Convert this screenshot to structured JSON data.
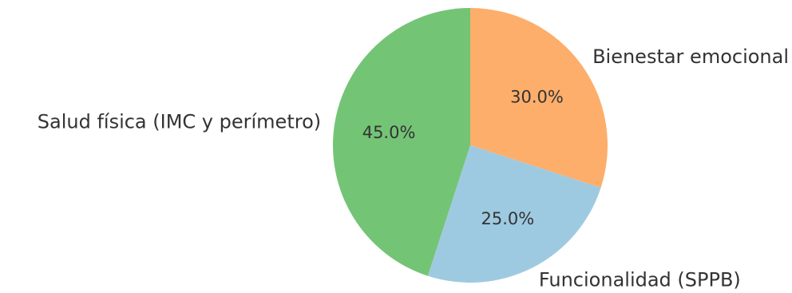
{
  "chart_data": {
    "type": "pie",
    "categories": [
      "Bienestar emocional",
      "Funcionalidad (SPPB)",
      "Salud física (IMC y perímetro)"
    ],
    "values": [
      30.0,
      25.0,
      45.0
    ],
    "percent_labels": [
      "30.0%",
      "25.0%",
      "45.0%"
    ],
    "colors": [
      "#fdae6b",
      "#9ecae1",
      "#74c476"
    ],
    "start_angle_deg": 90,
    "direction": "clockwise",
    "legend": "none"
  }
}
